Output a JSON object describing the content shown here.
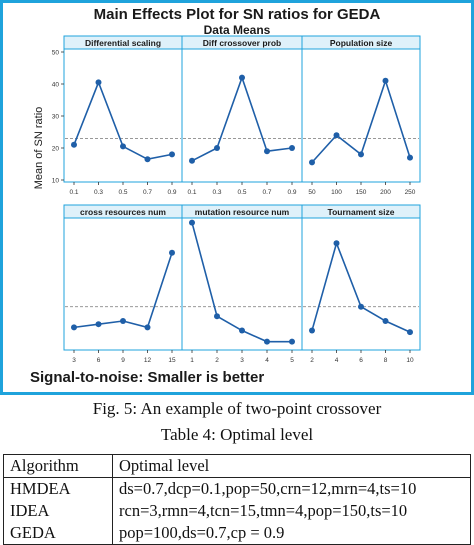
{
  "chart_data": {
    "type": "line",
    "title": "Main Effects Plot for SN ratios for GEDA",
    "subtitle": "Data Means",
    "ylabel": "Mean of SN ratio",
    "footnote": "Signal-to-noise: Smaller is better",
    "top_row_yticks": [
      10,
      20,
      30,
      40,
      50
    ],
    "ylim": [
      10,
      50
    ],
    "reference_line": 23,
    "panels": [
      {
        "name": "Differential scaling",
        "x": [
          "0.1",
          "0.3",
          "0.5",
          "0.7",
          "0.9"
        ],
        "values": [
          21,
          40.5,
          20.5,
          16.5,
          18
        ]
      },
      {
        "name": "Diff crossover prob",
        "x": [
          "0.1",
          "0.3",
          "0.5",
          "0.7",
          "0.9"
        ],
        "values": [
          16,
          20,
          42,
          19,
          20
        ]
      },
      {
        "name": "Population size",
        "x": [
          "50",
          "100",
          "150",
          "200",
          "250"
        ],
        "values": [
          15.5,
          24,
          18,
          41,
          17
        ]
      },
      {
        "name": "cross resources num",
        "x": [
          "3",
          "6",
          "9",
          "12",
          "15"
        ],
        "values": [
          16.5,
          17.5,
          18.5,
          16.5,
          40
        ]
      },
      {
        "name": "mutation resource num",
        "x": [
          "1",
          "2",
          "3",
          "4",
          "5"
        ],
        "values": [
          49.5,
          20,
          15.5,
          12,
          12
        ]
      },
      {
        "name": "Tournament size",
        "x": [
          "2",
          "4",
          "6",
          "8",
          "10"
        ],
        "values": [
          15.5,
          43,
          23,
          18.5,
          15
        ]
      }
    ],
    "colors": {
      "frame": "#1fa3dc",
      "line": "#1f5fa8",
      "reference": "#8a8a8a",
      "title": "#1a1a1a"
    }
  },
  "captions": {
    "figure": "Fig. 5: An example of two-point crossover",
    "table": "Table 4: Optimal level"
  },
  "table": {
    "headers": [
      "Algorithm",
      "Optimal level"
    ],
    "rows": [
      [
        "HMDEA",
        "ds=0.7,dcp=0.1,pop=50,crn=12,mrn=4,ts=10"
      ],
      [
        "IDEA",
        "rcn=3,rmn=4,tcn=15,tmn=4,pop=150,ts=10"
      ],
      [
        "GEDA",
        "pop=100,ds=0.7,cp = 0.9"
      ]
    ]
  }
}
